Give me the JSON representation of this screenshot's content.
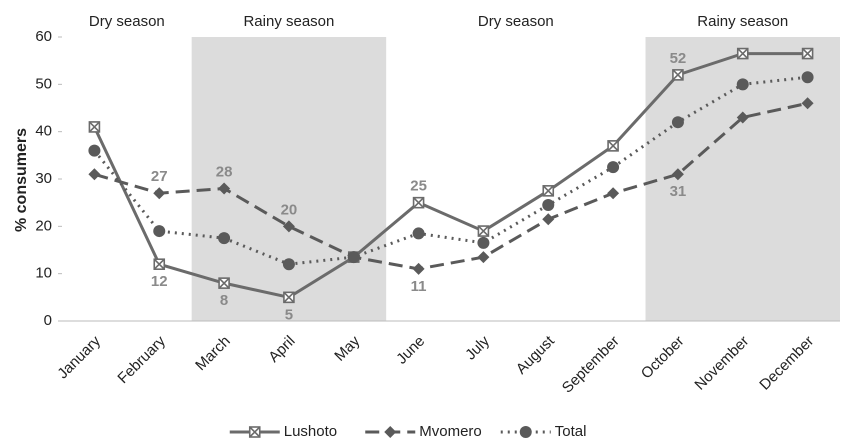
{
  "chart_data": {
    "type": "line",
    "y_label": "% consumers",
    "categories": [
      "January",
      "February",
      "March",
      "April",
      "May",
      "June",
      "July",
      "August",
      "September",
      "October",
      "November",
      "December"
    ],
    "series": [
      {
        "name": "Lushoto",
        "color": "#6b6b6b",
        "dash": "solid",
        "marker": "square-x",
        "values": [
          41,
          12,
          8,
          5,
          13.5,
          25,
          19,
          27.5,
          37,
          52,
          56.5,
          56.5
        ],
        "value_labels": [
          null,
          "12",
          "8",
          "5",
          null,
          "25",
          null,
          null,
          null,
          "52",
          null,
          null
        ]
      },
      {
        "name": "Mvomero",
        "color": "#5a5a5a",
        "dash": "dashed",
        "marker": "diamond",
        "values": [
          31,
          27,
          28,
          20,
          13.5,
          11,
          13.5,
          21.5,
          27,
          31,
          43,
          46
        ],
        "value_labels": [
          null,
          "27",
          "28",
          "20",
          null,
          "11",
          null,
          null,
          null,
          "31",
          null,
          null
        ]
      },
      {
        "name": "Total",
        "color": "#5a5a5a",
        "dash": "dotted",
        "marker": "circle",
        "values": [
          36,
          19,
          17.5,
          12,
          13.5,
          18.5,
          16.5,
          24.5,
          32.5,
          42,
          50,
          51.5
        ],
        "value_labels": [
          null,
          null,
          null,
          null,
          null,
          null,
          null,
          null,
          null,
          null,
          null,
          null
        ]
      }
    ],
    "seasons": [
      {
        "label": "Dry season",
        "from": "January",
        "to": "February",
        "shaded": false
      },
      {
        "label": "Rainy season",
        "from": "March",
        "to": "May",
        "shaded": true
      },
      {
        "label": "Dry season",
        "from": "June",
        "to": "September",
        "shaded": false
      },
      {
        "label": "Rainy season",
        "from": "October",
        "to": "December",
        "shaded": true
      }
    ],
    "ylim": [
      0,
      60
    ],
    "yticks": [
      0,
      10,
      20,
      30,
      40,
      50,
      60
    ],
    "grid": false,
    "legend": "bottom"
  }
}
